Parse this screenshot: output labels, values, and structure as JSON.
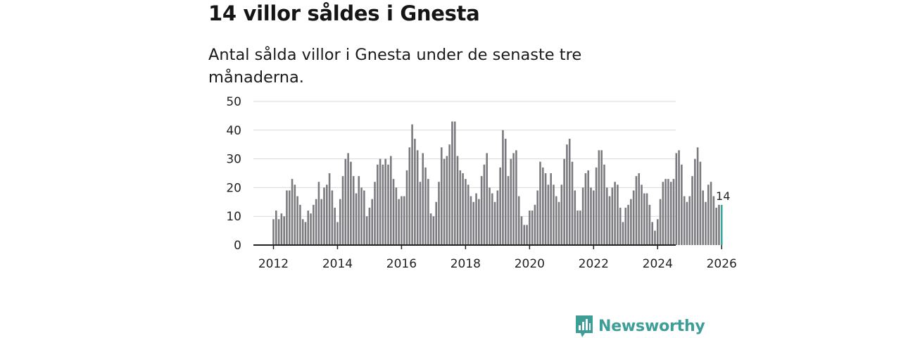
{
  "headline": "14 villor såldes i Gnesta",
  "subtitle": "Antal sålda villor i Gnesta under de senaste tre månaderna.",
  "brand": {
    "name": "Newsworthy"
  },
  "colors": {
    "bar": "#7b7a7f",
    "highlight": "#3aa79c",
    "grid": "#d9d9d9",
    "axis": "#222222",
    "brand": "#3c9e97"
  },
  "chart_data": {
    "type": "bar",
    "title": "14 villor såldes i Gnesta",
    "subtitle": "Antal sålda villor i Gnesta under de senaste tre månaderna.",
    "xlabel": "",
    "ylabel": "",
    "ylim": [
      0,
      50
    ],
    "yticks": [
      0,
      10,
      20,
      30,
      40,
      50
    ],
    "xticks": [
      "2012",
      "2014",
      "2016",
      "2018",
      "2020",
      "2022",
      "2024",
      "2026"
    ],
    "x_start": "2012-01",
    "grid": true,
    "highlight_label": "14",
    "values": [
      9,
      12,
      9,
      11,
      10,
      19,
      19,
      23,
      21,
      17,
      14,
      9,
      8,
      12,
      11,
      14,
      16,
      22,
      16,
      20,
      21,
      25,
      19,
      13,
      8,
      16,
      24,
      30,
      32,
      29,
      24,
      18,
      24,
      20,
      19,
      10,
      13,
      16,
      22,
      28,
      30,
      28,
      30,
      28,
      31,
      23,
      20,
      16,
      17,
      17,
      26,
      34,
      42,
      37,
      33,
      22,
      32,
      27,
      23,
      11,
      10,
      15,
      22,
      34,
      30,
      31,
      35,
      43,
      43,
      31,
      26,
      25,
      23,
      21,
      17,
      15,
      18,
      16,
      24,
      28,
      32,
      20,
      18,
      15,
      19,
      27,
      40,
      37,
      24,
      30,
      32,
      33,
      17,
      10,
      7,
      7,
      12,
      12,
      14,
      19,
      29,
      27,
      25,
      21,
      25,
      21,
      17,
      15,
      21,
      30,
      35,
      37,
      29,
      19,
      12,
      12,
      20,
      25,
      26,
      20,
      19,
      27,
      33,
      33,
      28,
      20,
      17,
      20,
      22,
      21,
      13,
      8,
      13,
      14,
      16,
      19,
      24,
      25,
      21,
      18,
      18,
      14,
      8,
      5,
      9,
      16,
      22,
      23,
      23,
      22,
      23,
      32,
      33,
      28,
      17,
      15,
      17,
      24,
      30,
      34,
      29,
      19,
      15,
      21,
      22,
      17,
      13,
      14,
      14
    ]
  }
}
